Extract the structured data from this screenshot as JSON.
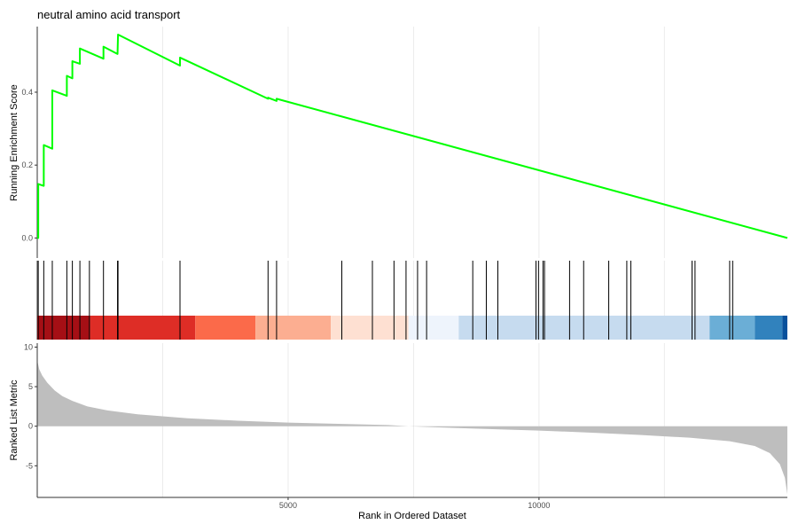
{
  "chart_data": {
    "type": "line",
    "title": "neutral amino acid transport",
    "xlabel": "Rank in Ordered Dataset",
    "ylabel_top": "Running Enrichment Score",
    "ylabel_bottom": "Ranked List Metric",
    "x_ticks": [
      5000,
      10000
    ],
    "x_tick_labels": [
      "5000",
      "10000"
    ],
    "xlim": [
      0,
      14950
    ],
    "es_ylim": [
      -0.055,
      0.58
    ],
    "es_y_ticks": [
      0.0,
      0.2,
      0.4
    ],
    "es_y_tick_labels": [
      "0.0",
      "0.2",
      "0.4"
    ],
    "metric_ylim": [
      -9,
      10.5
    ],
    "metric_y_ticks": [
      -5,
      0,
      5,
      10
    ],
    "metric_y_tick_labels": [
      "-5",
      "0",
      "5",
      "10"
    ],
    "line_color": "#00ff00",
    "hit_positions": [
      20,
      130,
      300,
      590,
      700,
      850,
      1040,
      1320,
      1600,
      1610,
      2845,
      4600,
      4770,
      6070,
      6680,
      7110,
      7350,
      7580,
      7760,
      8680,
      8950,
      9180,
      9940,
      9990,
      10080,
      10110,
      10610,
      10890,
      11390,
      11750,
      11830,
      13050,
      13110,
      13800,
      13860
    ],
    "running_es": [
      [
        0,
        0.0
      ],
      [
        20,
        0.0
      ],
      [
        20,
        0.148
      ],
      [
        130,
        0.143
      ],
      [
        130,
        0.255
      ],
      [
        300,
        0.245
      ],
      [
        300,
        0.405
      ],
      [
        590,
        0.39
      ],
      [
        590,
        0.445
      ],
      [
        700,
        0.438
      ],
      [
        700,
        0.485
      ],
      [
        850,
        0.478
      ],
      [
        850,
        0.52
      ],
      [
        1320,
        0.492
      ],
      [
        1320,
        0.525
      ],
      [
        1600,
        0.505
      ],
      [
        1610,
        0.558
      ],
      [
        2845,
        0.473
      ],
      [
        2845,
        0.495
      ],
      [
        4600,
        0.382
      ],
      [
        4600,
        0.385
      ],
      [
        4770,
        0.376
      ],
      [
        4770,
        0.382
      ],
      [
        14950,
        0.0
      ]
    ],
    "metric_profile": [
      [
        0,
        8.3
      ],
      [
        40,
        7.2
      ],
      [
        100,
        6.4
      ],
      [
        200,
        5.5
      ],
      [
        350,
        4.5
      ],
      [
        500,
        3.8
      ],
      [
        700,
        3.2
      ],
      [
        1000,
        2.5
      ],
      [
        1400,
        2.0
      ],
      [
        2000,
        1.5
      ],
      [
        3000,
        1.0
      ],
      [
        4000,
        0.7
      ],
      [
        5000,
        0.45
      ],
      [
        6000,
        0.3
      ],
      [
        7000,
        0.15
      ],
      [
        7400,
        0.0
      ],
      [
        8000,
        -0.15
      ],
      [
        9000,
        -0.35
      ],
      [
        10000,
        -0.55
      ],
      [
        11000,
        -0.8
      ],
      [
        12000,
        -1.1
      ],
      [
        13000,
        -1.45
      ],
      [
        13800,
        -1.9
      ],
      [
        14300,
        -2.5
      ],
      [
        14600,
        -3.4
      ],
      [
        14800,
        -4.8
      ],
      [
        14900,
        -6.5
      ],
      [
        14950,
        -8.6
      ]
    ],
    "heat_bands": [
      {
        "from": 0,
        "to": 1050,
        "color": "#a50f15"
      },
      {
        "from": 1050,
        "to": 3150,
        "color": "#de2d26"
      },
      {
        "from": 3150,
        "to": 4350,
        "color": "#fb6a4a"
      },
      {
        "from": 4350,
        "to": 5850,
        "color": "#fcae91"
      },
      {
        "from": 5850,
        "to": 7400,
        "color": "#fee0d2"
      },
      {
        "from": 7400,
        "to": 8400,
        "color": "#eef4fc"
      },
      {
        "from": 8400,
        "to": 13400,
        "color": "#c6dbef"
      },
      {
        "from": 13400,
        "to": 14300,
        "color": "#6baed6"
      },
      {
        "from": 14300,
        "to": 14850,
        "color": "#3182bd"
      },
      {
        "from": 14850,
        "to": 14950,
        "color": "#08519c"
      }
    ]
  }
}
